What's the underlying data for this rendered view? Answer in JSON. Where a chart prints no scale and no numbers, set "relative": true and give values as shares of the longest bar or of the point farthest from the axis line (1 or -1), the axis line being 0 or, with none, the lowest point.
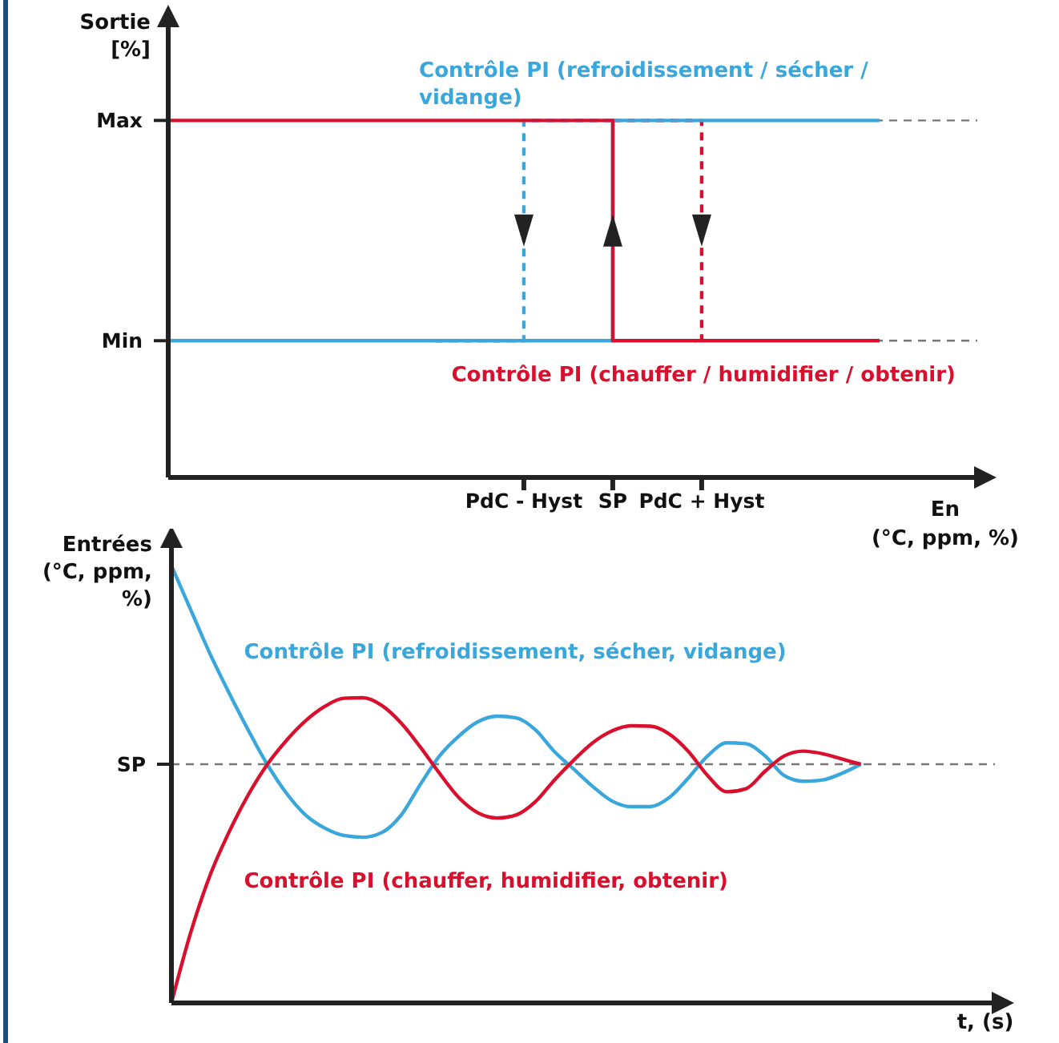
{
  "chart_data": [
    {
      "type": "step",
      "relative": true,
      "ylabel": "Sortie [%]",
      "xlabel": "En (°C, ppm, %)",
      "categories": [
        null,
        null,
        null,
        null,
        "PdC - Hyst",
        "SP",
        "PdC + Hyst",
        null,
        null
      ],
      "ref_lines": [
        {
          "axis": "y",
          "value": 0.383,
          "label": "Min",
          "color": "#777777",
          "line_style": "dashed"
        },
        {
          "axis": "y",
          "value": 1,
          "label": "Max",
          "color": "#777777",
          "line_style": "dashed"
        }
      ],
      "series": [
        {
          "color": "#3aa7dc",
          "line_style": "dashed",
          "values": [
            null,
            null,
            null,
            0.383,
            1,
            1,
            null,
            null,
            null
          ]
        },
        {
          "color": "#d9102d",
          "line_style": "dashed",
          "values": [
            null,
            null,
            null,
            null,
            null,
            1,
            0.383,
            null,
            null
          ]
        },
        {
          "name": "Contrôle PI (refroidissement / sécher / vidange)",
          "color": "#3aa7dc",
          "values": [
            0.383,
            0.383,
            0.383,
            0.383,
            0.383,
            1,
            1,
            1,
            1
          ]
        },
        {
          "name": "Contrôle PI (chauffer / humidifier / obtenir)",
          "color": "#d9102d",
          "values": [
            1,
            1,
            1,
            1,
            1,
            0.383,
            0.383,
            0.383,
            0.383
          ]
        }
      ]
    },
    {
      "type": "line",
      "relative": true,
      "ylabel": "Entrées (°C, ppm, %)",
      "xlabel": "t, (s)",
      "categories": [
        null,
        null,
        null,
        null,
        null,
        null,
        null,
        null,
        null,
        null,
        null,
        null,
        null,
        null,
        null,
        null,
        null,
        null,
        null,
        null,
        null,
        null,
        null,
        null,
        null,
        null,
        null,
        null,
        null,
        null,
        null,
        null,
        null,
        null,
        null,
        null,
        null,
        null,
        null,
        null,
        null,
        null,
        null,
        null
      ],
      "ref_lines": [
        {
          "axis": "y",
          "value": 0.546,
          "label": "SP",
          "color": "#777777",
          "line_style": "dashed"
        }
      ],
      "series": [
        {
          "name": "Contrôle PI (refroidissement, sécher, vidange)",
          "color": "#3aa7dc",
          "values": [
            1.0,
            0.9,
            0.8,
            0.71,
            0.625,
            0.546,
            0.48,
            0.43,
            0.4,
            0.383,
            0.379,
            0.39,
            0.43,
            0.5,
            0.565,
            0.61,
            0.643,
            0.656,
            0.652,
            0.625,
            0.575,
            0.535,
            0.495,
            0.462,
            0.449,
            0.449,
            0.47,
            0.515,
            0.565,
            0.595,
            0.593,
            0.565,
            0.52,
            0.507,
            0.51,
            0.525,
            0.546,
            null,
            null,
            null,
            null,
            null,
            null,
            null
          ]
        },
        {
          "name": "Contrôle PI (chauffer, humidifier, obtenir)",
          "color": "#d9102d",
          "values": [
            0,
            0.16,
            0.29,
            0.39,
            0.475,
            0.545,
            0.6,
            0.645,
            0.678,
            0.697,
            0.698,
            0.68,
            0.64,
            0.585,
            0.525,
            0.47,
            0.435,
            0.423,
            0.43,
            0.46,
            0.51,
            0.555,
            0.595,
            0.622,
            0.634,
            0.633,
            0.615,
            0.575,
            0.52,
            0.483,
            0.49,
            0.53,
            0.565,
            0.576,
            0.57,
            0.558,
            0.546,
            null,
            null,
            null,
            null,
            null,
            null,
            null
          ]
        }
      ]
    }
  ]
}
